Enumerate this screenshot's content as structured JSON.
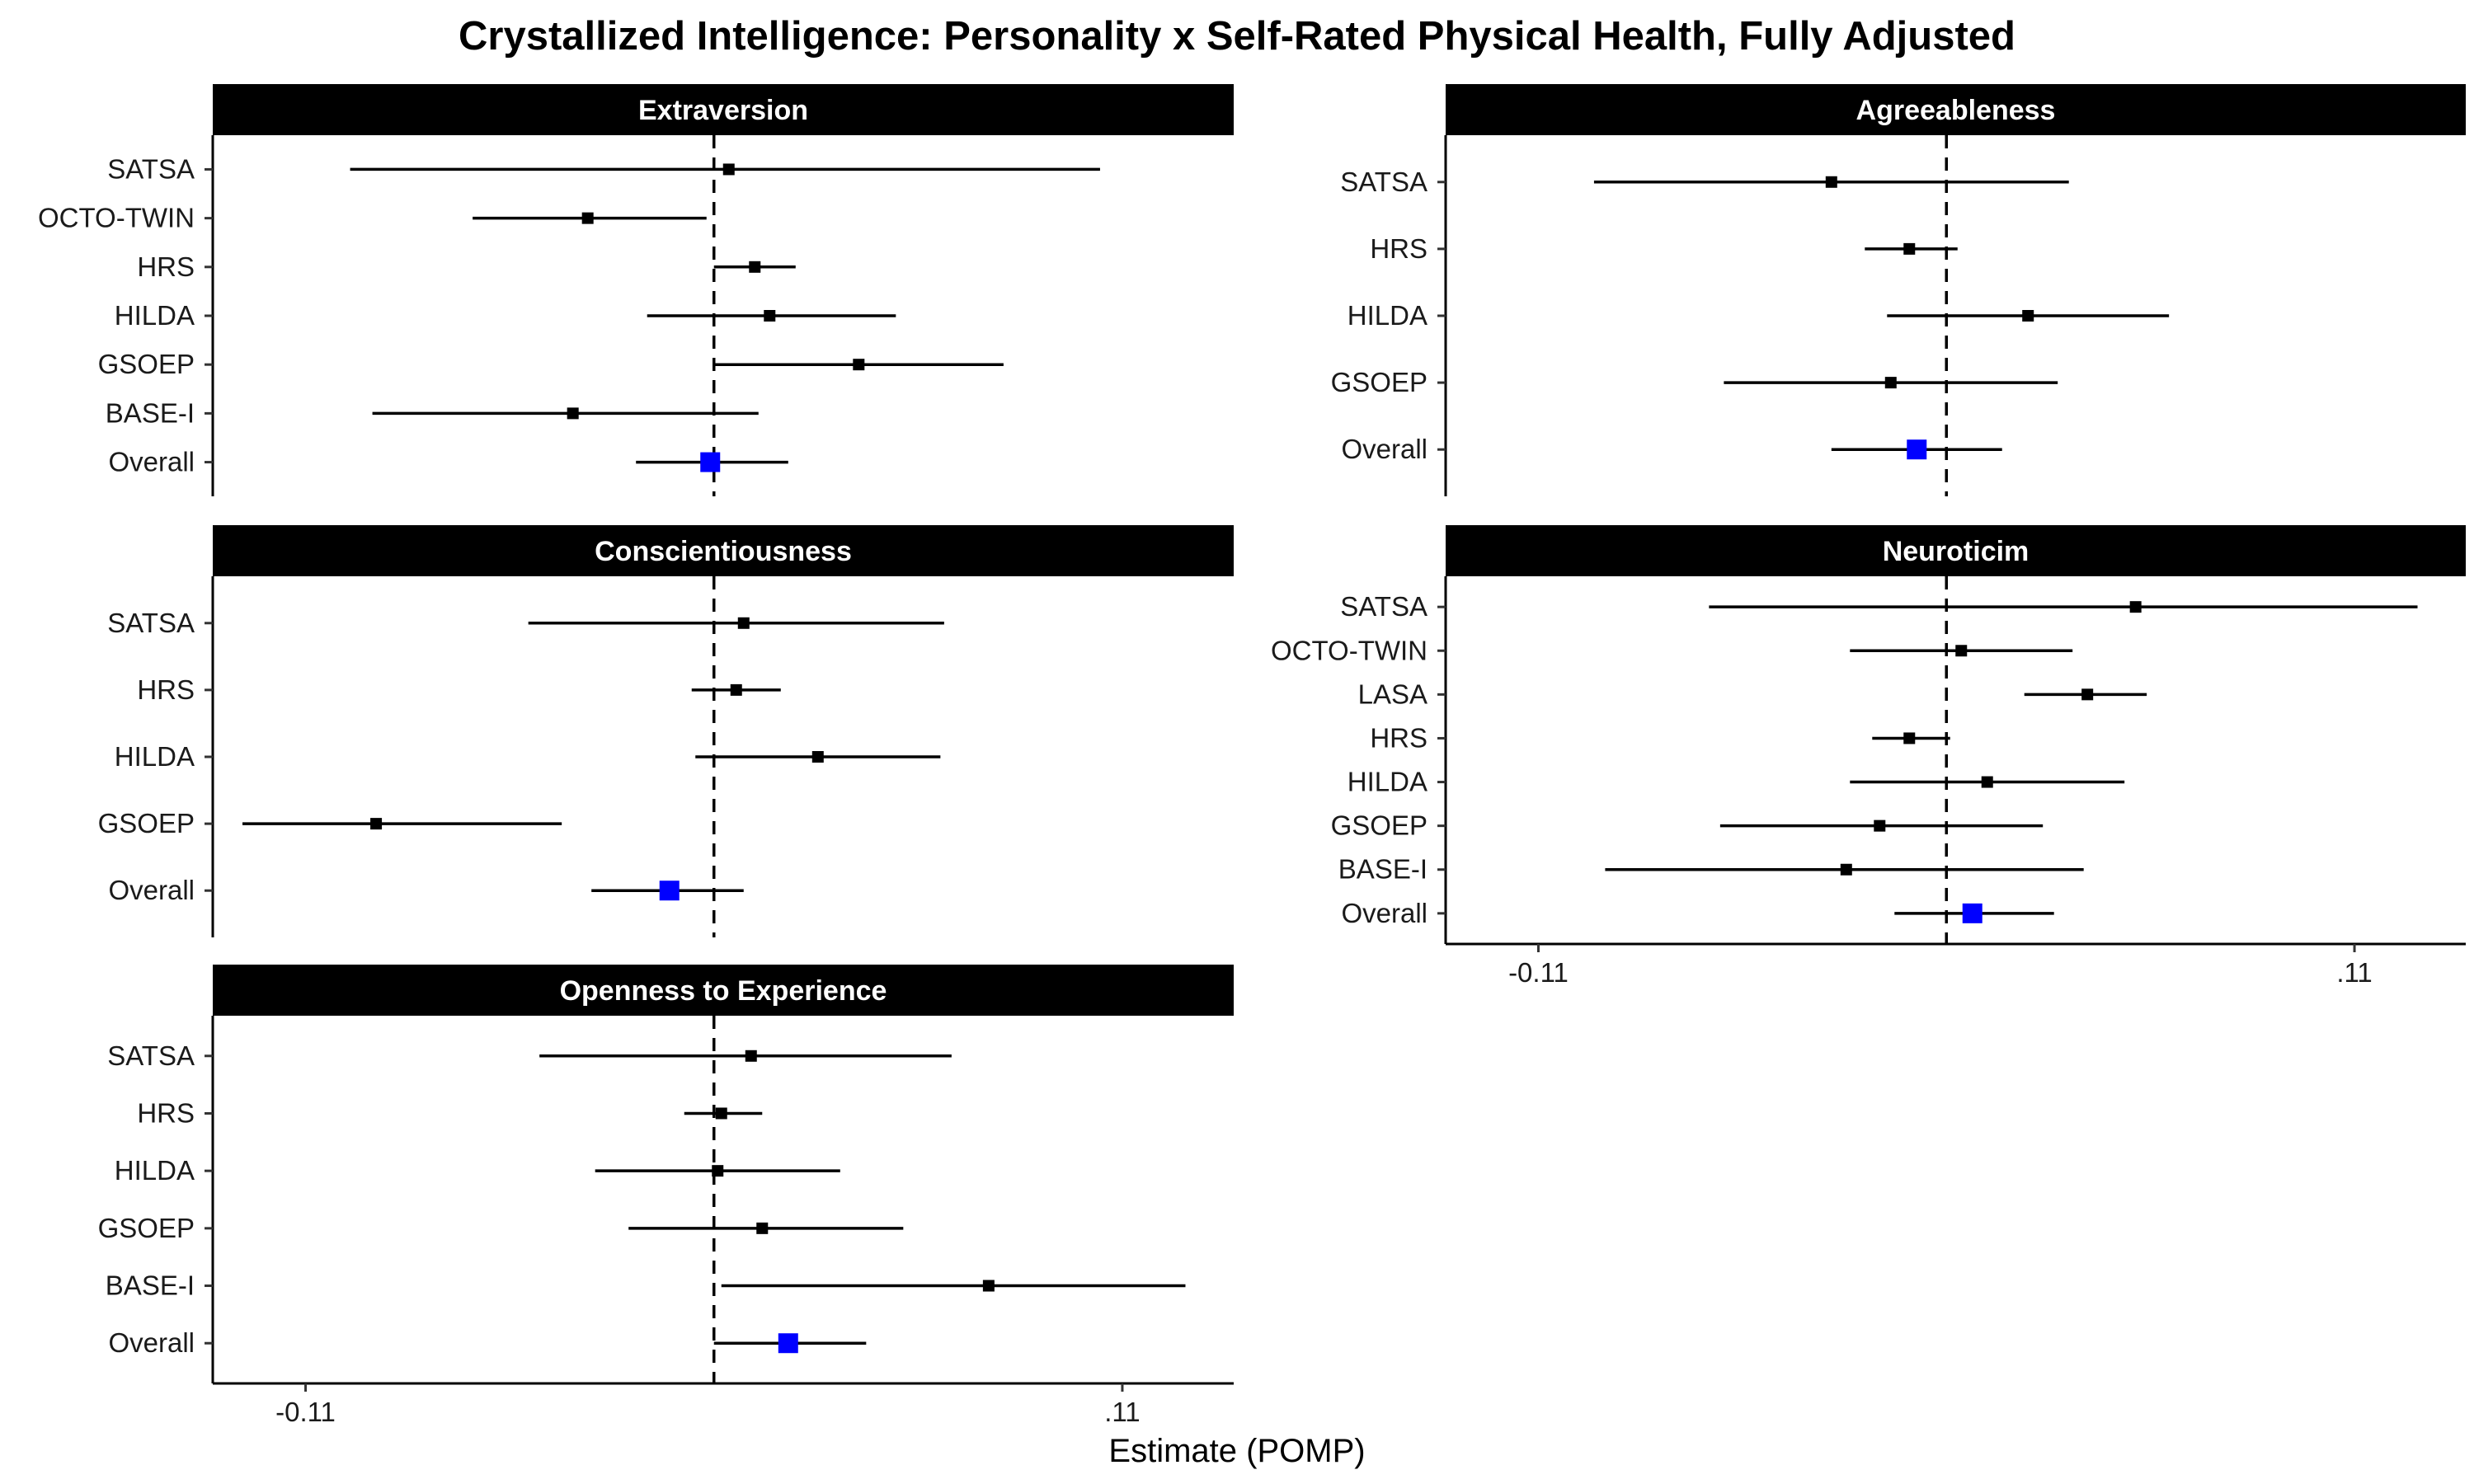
{
  "chart_data": {
    "type": "forest",
    "title": "Crystallized Intelligence: Personality x Self-Rated Physical Health, Fully Adjusted",
    "xlabel": "Estimate (POMP)",
    "xlim": [
      -0.135,
      0.14
    ],
    "x_ticks": [
      {
        "value": -0.11,
        "label": "-0.11"
      },
      {
        "value": 0.11,
        "label": ".11"
      }
    ],
    "reference_line": 0,
    "colors": {
      "study": "#000000",
      "overall": "#0000ff",
      "strip": "#000000",
      "strip_text": "#ffffff"
    },
    "panels": [
      {
        "name": "Extraversion",
        "rows": [
          {
            "label": "SATSA",
            "estimate": 0.004,
            "lower": -0.098,
            "upper": 0.104
          },
          {
            "label": "OCTO-TWIN",
            "estimate": -0.034,
            "lower": -0.065,
            "upper": -0.002
          },
          {
            "label": "HRS",
            "estimate": 0.011,
            "lower": 0.0,
            "upper": 0.022
          },
          {
            "label": "HILDA",
            "estimate": 0.015,
            "lower": -0.018,
            "upper": 0.049
          },
          {
            "label": "GSOEP",
            "estimate": 0.039,
            "lower": 0.0,
            "upper": 0.078
          },
          {
            "label": "BASE-I",
            "estimate": -0.038,
            "lower": -0.092,
            "upper": 0.012
          },
          {
            "label": "Overall",
            "estimate": -0.001,
            "lower": -0.021,
            "upper": 0.02,
            "overall": true
          }
        ]
      },
      {
        "name": "Agreeableness",
        "rows": [
          {
            "label": "SATSA",
            "estimate": -0.031,
            "lower": -0.095,
            "upper": 0.033
          },
          {
            "label": "HRS",
            "estimate": -0.01,
            "lower": -0.022,
            "upper": 0.003
          },
          {
            "label": "HILDA",
            "estimate": 0.022,
            "lower": -0.016,
            "upper": 0.06
          },
          {
            "label": "GSOEP",
            "estimate": -0.015,
            "lower": -0.06,
            "upper": 0.03
          },
          {
            "label": "Overall",
            "estimate": -0.008,
            "lower": -0.031,
            "upper": 0.015,
            "overall": true
          }
        ]
      },
      {
        "name": "Conscientiousness",
        "rows": [
          {
            "label": "SATSA",
            "estimate": 0.008,
            "lower": -0.05,
            "upper": 0.062
          },
          {
            "label": "HRS",
            "estimate": 0.006,
            "lower": -0.006,
            "upper": 0.018
          },
          {
            "label": "HILDA",
            "estimate": 0.028,
            "lower": -0.005,
            "upper": 0.061
          },
          {
            "label": "GSOEP",
            "estimate": -0.091,
            "lower": -0.127,
            "upper": -0.041
          },
          {
            "label": "Overall",
            "estimate": -0.012,
            "lower": -0.033,
            "upper": 0.008,
            "overall": true
          }
        ]
      },
      {
        "name": "Neuroticim",
        "rows": [
          {
            "label": "SATSA",
            "estimate": 0.051,
            "lower": -0.064,
            "upper": 0.127
          },
          {
            "label": "OCTO-TWIN",
            "estimate": 0.004,
            "lower": -0.026,
            "upper": 0.034
          },
          {
            "label": "LASA",
            "estimate": 0.038,
            "lower": 0.021,
            "upper": 0.054
          },
          {
            "label": "HRS",
            "estimate": -0.01,
            "lower": -0.02,
            "upper": 0.001
          },
          {
            "label": "HILDA",
            "estimate": 0.011,
            "lower": -0.026,
            "upper": 0.048
          },
          {
            "label": "GSOEP",
            "estimate": -0.018,
            "lower": -0.061,
            "upper": 0.026
          },
          {
            "label": "BASE-I",
            "estimate": -0.027,
            "lower": -0.092,
            "upper": 0.037
          },
          {
            "label": "Overall",
            "estimate": 0.007,
            "lower": -0.014,
            "upper": 0.029,
            "overall": true
          }
        ]
      },
      {
        "name": "Openness to Experience",
        "rows": [
          {
            "label": "SATSA",
            "estimate": 0.01,
            "lower": -0.047,
            "upper": 0.064
          },
          {
            "label": "HRS",
            "estimate": 0.002,
            "lower": -0.008,
            "upper": 0.013
          },
          {
            "label": "HILDA",
            "estimate": 0.001,
            "lower": -0.032,
            "upper": 0.034
          },
          {
            "label": "GSOEP",
            "estimate": 0.013,
            "lower": -0.023,
            "upper": 0.051
          },
          {
            "label": "BASE-I",
            "estimate": 0.074,
            "lower": 0.002,
            "upper": 0.127
          },
          {
            "label": "Overall",
            "estimate": 0.02,
            "lower": 0.0,
            "upper": 0.041,
            "overall": true
          }
        ]
      }
    ]
  }
}
